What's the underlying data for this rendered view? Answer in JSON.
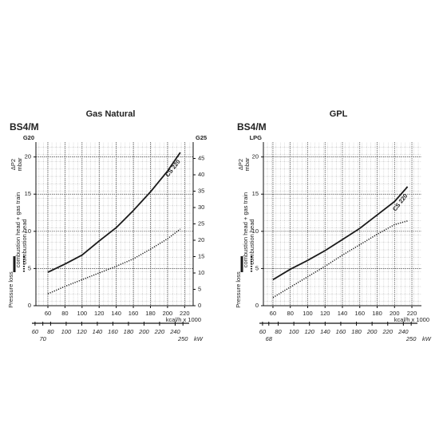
{
  "chart_data": [
    {
      "type": "line",
      "title": "Gas Natural",
      "model": "BS4/M",
      "y_label": "G20",
      "y2_label": "G25",
      "y_quantity": "ΔP2",
      "y_unit": "mbar",
      "x_label": "kcal/h x 1000",
      "x2_label": "kW",
      "legend_title": "Pressure loss",
      "curve_label": "CS 220",
      "x": [
        60,
        80,
        100,
        120,
        140,
        160,
        180,
        200,
        215
      ],
      "series": [
        {
          "name": "combustion head + gas train",
          "color": "#1a1a1a",
          "style": "solid",
          "values": [
            4.5,
            5.6,
            6.8,
            8.7,
            10.5,
            12.8,
            15.3,
            18.1,
            20.6
          ]
        },
        {
          "name": "combustion head",
          "color": "#1a1a1a",
          "style": "dotted",
          "values": [
            1.6,
            2.6,
            3.5,
            4.4,
            5.3,
            6.3,
            7.6,
            9.0,
            10.3
          ]
        }
      ],
      "xlim": [
        46,
        230
      ],
      "xticks": [
        60,
        80,
        100,
        120,
        140,
        160,
        180,
        200,
        220
      ],
      "ylim": [
        0,
        22
      ],
      "yticks": [
        0,
        5,
        10,
        15,
        20
      ],
      "y2lim": [
        0,
        50
      ],
      "y2ticks": [
        0,
        5,
        10,
        15,
        20,
        25,
        30,
        35,
        40,
        45
      ],
      "x2lim": [
        56,
        258
      ],
      "x2ticks": [
        60,
        70,
        80,
        100,
        120,
        140,
        160,
        180,
        200,
        220,
        240,
        250
      ],
      "grid": true
    },
    {
      "type": "line",
      "title": "GPL",
      "model": "BS4/M",
      "y_label": "LPG",
      "y_quantity": "ΔP2",
      "y_unit": "mbar",
      "x_label": "kcal/h x 1000",
      "x2_label": "kW",
      "legend_title": "Pressure loss",
      "curve_label": "CS 220",
      "x": [
        60,
        80,
        100,
        120,
        140,
        160,
        180,
        200,
        215
      ],
      "series": [
        {
          "name": "combustion head + gas train",
          "color": "#1a1a1a",
          "style": "solid",
          "values": [
            3.5,
            4.9,
            6.1,
            7.4,
            8.9,
            10.4,
            12.2,
            14.0,
            16.0
          ]
        },
        {
          "name": "combustion head",
          "color": "#1a1a1a",
          "style": "dotted",
          "values": [
            1.1,
            2.5,
            3.9,
            5.3,
            6.8,
            8.2,
            9.6,
            10.9,
            11.4
          ]
        }
      ],
      "xlim": [
        49,
        231
      ],
      "xticks": [
        60,
        80,
        100,
        120,
        140,
        160,
        180,
        200,
        220
      ],
      "ylim": [
        0,
        22
      ],
      "yticks": [
        0,
        5,
        10,
        15,
        20
      ],
      "x2lim": [
        56,
        258
      ],
      "x2ticks": [
        60,
        68,
        80,
        100,
        120,
        140,
        160,
        180,
        200,
        220,
        240,
        250
      ],
      "grid": true
    }
  ]
}
